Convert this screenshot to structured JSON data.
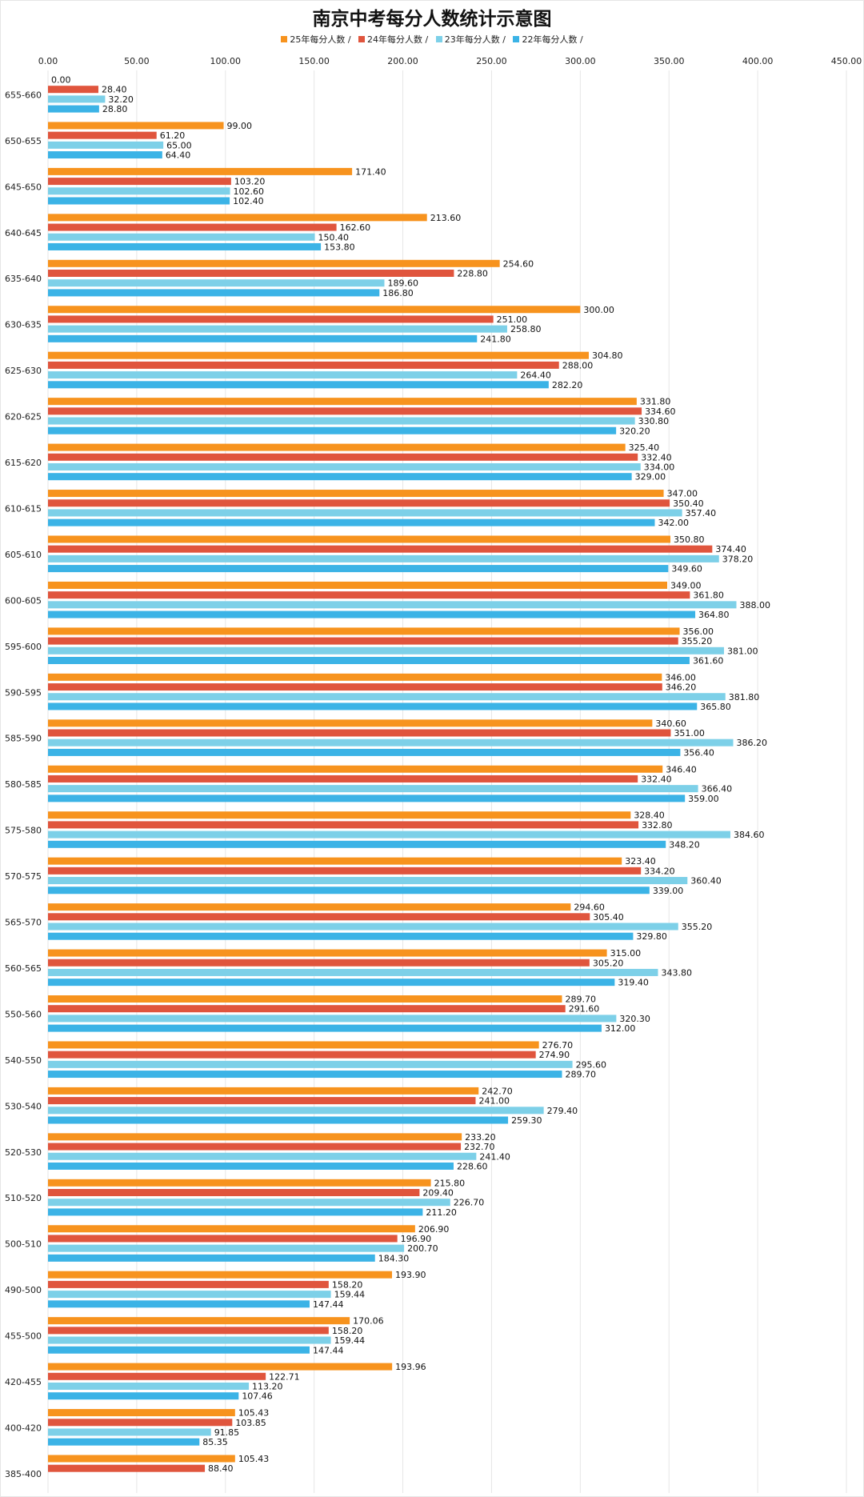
{
  "colors": {
    "s25": "#f7931e",
    "s24": "#e0553d",
    "s23": "#7dd0e8",
    "s22": "#3bb3e6",
    "grid": "#e6e6e6"
  },
  "chart_data": {
    "type": "bar",
    "orientation": "horizontal",
    "title": "南京中考每分人数统计示意图",
    "legend_position": "top",
    "grid": true,
    "xlim": [
      0,
      450
    ],
    "x_ticks": [
      "0.00",
      "50.00",
      "100.00",
      "150.00",
      "200.00",
      "250.00",
      "300.00",
      "350.00",
      "400.00",
      "450.00"
    ],
    "categories": [
      "655-660",
      "650-655",
      "645-650",
      "640-645",
      "635-640",
      "630-635",
      "625-630",
      "620-625",
      "615-620",
      "610-615",
      "605-610",
      "600-605",
      "595-600",
      "590-595",
      "585-590",
      "580-585",
      "575-580",
      "570-575",
      "565-570",
      "560-565",
      "550-560",
      "540-550",
      "530-540",
      "520-530",
      "510-520",
      "500-510",
      "490-500",
      "455-500",
      "420-455",
      "400-420",
      "385-400"
    ],
    "series": [
      {
        "name": "25年每分人数",
        "legend_label": "25年每分人数 /",
        "color_key": "s25",
        "values": [
          0,
          99,
          171.4,
          213.6,
          254.6,
          300,
          304.8,
          331.8,
          325.4,
          347,
          350.8,
          349,
          356,
          346,
          340.6,
          346.4,
          328.4,
          323.4,
          294.6,
          315,
          289.7,
          276.7,
          242.7,
          233.2,
          215.8,
          206.9,
          193.9,
          170.06,
          193.96,
          105.43,
          105.43
        ],
        "labels": [
          "0.00",
          "99.00",
          "171.40",
          "213.60",
          "254.60",
          "300.00",
          "304.80",
          "331.80",
          "325.40",
          "347.00",
          "350.80",
          "349.00",
          "356.00",
          "346.00",
          "340.60",
          "346.40",
          "328.40",
          "323.40",
          "294.60",
          "315.00",
          "289.70",
          "276.70",
          "242.70",
          "233.20",
          "215.80",
          "206.90",
          "193.90",
          "170.06",
          "193.96",
          "105.43",
          "105.43"
        ]
      },
      {
        "name": "24年每分人数",
        "legend_label": "24年每分人数 /",
        "color_key": "s24",
        "values": [
          28.4,
          61.2,
          103.2,
          162.6,
          228.8,
          251,
          288,
          334.6,
          332.4,
          350.4,
          374.4,
          361.8,
          355.2,
          346.2,
          351,
          332.4,
          332.8,
          334.2,
          305.4,
          305.2,
          291.6,
          274.9,
          241,
          232.7,
          209.4,
          196.9,
          158.2,
          158.2,
          122.71,
          103.85,
          88.4
        ],
        "labels": [
          "28.40",
          "61.20",
          "103.20",
          "162.60",
          "228.80",
          "251.00",
          "288.00",
          "334.60",
          "332.40",
          "350.40",
          "374.40",
          "361.80",
          "355.20",
          "346.20",
          "351.00",
          "332.40",
          "332.80",
          "334.20",
          "305.40",
          "305.20",
          "291.60",
          "274.90",
          "241.00",
          "232.70",
          "209.40",
          "196.90",
          "158.20",
          "158.20",
          "122.71",
          "103.85",
          "88.40"
        ]
      },
      {
        "name": "23年每分人数",
        "legend_label": "23年每分人数 /",
        "color_key": "s23",
        "values": [
          32.2,
          65,
          102.6,
          150.4,
          189.6,
          258.8,
          264.4,
          330.8,
          334,
          357.4,
          378.2,
          388,
          381,
          381.8,
          386.2,
          366.4,
          384.6,
          360.4,
          355.2,
          343.8,
          320.3,
          295.6,
          279.4,
          241.4,
          226.7,
          200.7,
          159.44,
          159.44,
          113.2,
          91.85,
          null
        ],
        "labels": [
          "32.20",
          "65.00",
          "102.60",
          "150.40",
          "189.60",
          "258.80",
          "264.40",
          "330.80",
          "334.00",
          "357.40",
          "378.20",
          "388.00",
          "381.00",
          "381.80",
          "386.20",
          "366.40",
          "384.60",
          "360.40",
          "355.20",
          "343.80",
          "320.30",
          "295.60",
          "279.40",
          "241.40",
          "226.70",
          "200.70",
          "159.44",
          "159.44",
          "113.20",
          "91.85",
          ""
        ]
      },
      {
        "name": "22年每分人数",
        "legend_label": "22年每分人数 /",
        "color_key": "s22",
        "values": [
          28.8,
          64.4,
          102.4,
          153.8,
          186.8,
          241.8,
          282.2,
          320.2,
          329,
          342,
          349.6,
          364.8,
          361.6,
          365.8,
          356.4,
          359,
          348.2,
          339,
          329.8,
          319.4,
          312,
          289.7,
          259.3,
          228.6,
          211.2,
          184.3,
          147.44,
          147.44,
          107.46,
          85.35,
          null
        ],
        "labels": [
          "28.80",
          "64.40",
          "102.40",
          "153.80",
          "186.80",
          "241.80",
          "282.20",
          "320.20",
          "329.00",
          "342.00",
          "349.60",
          "364.80",
          "361.60",
          "365.80",
          "356.40",
          "359.00",
          "348.20",
          "339.00",
          "329.80",
          "319.40",
          "312.00",
          "289.70",
          "259.30",
          "228.60",
          "211.20",
          "184.30",
          "147.44",
          "147.44",
          "107.46",
          "85.35",
          ""
        ]
      }
    ]
  }
}
